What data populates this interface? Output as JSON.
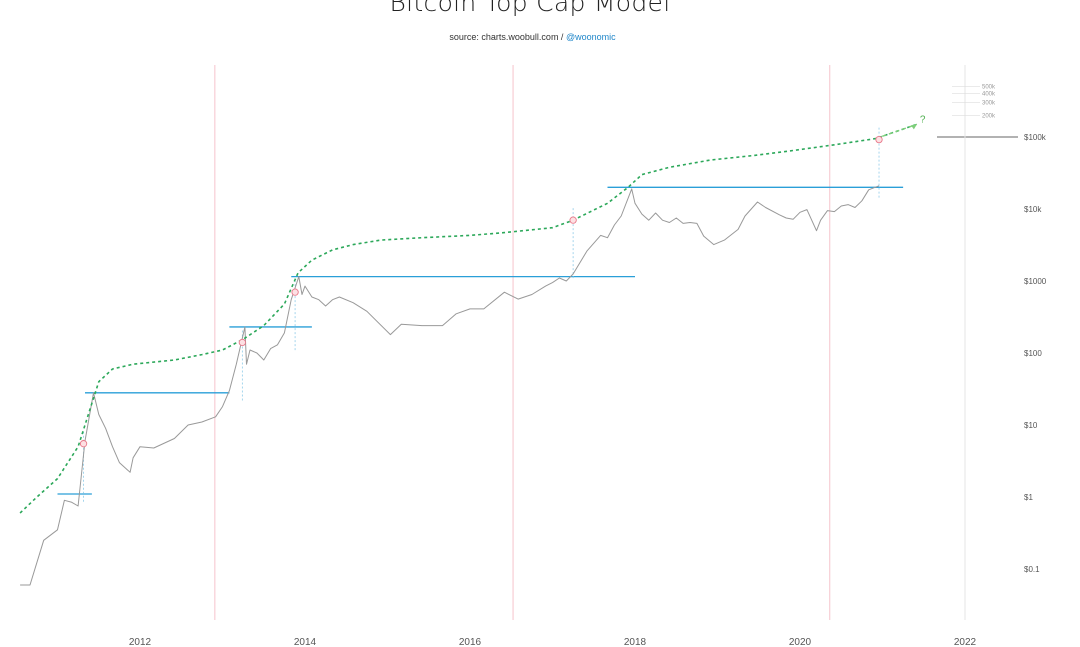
{
  "title": "Bitcoin Top Cap Model",
  "source": {
    "prefix": "source: charts.woobull.com / ",
    "handle": "@woonomic"
  },
  "chart_data": {
    "type": "line",
    "title": "Bitcoin Top Cap Model",
    "yscale": "log",
    "ylim": [
      0.05,
      600000
    ],
    "xlim": [
      "2010-07",
      "2022-06"
    ],
    "y_ticks": [
      {
        "value": 0.1,
        "label": "$0.1"
      },
      {
        "value": 1,
        "label": "$1"
      },
      {
        "value": 10,
        "label": "$10"
      },
      {
        "value": 100,
        "label": "$100"
      },
      {
        "value": 1000,
        "label": "$1000"
      },
      {
        "value": 10000,
        "label": "$10k"
      },
      {
        "value": 100000,
        "label": "$100k"
      }
    ],
    "x_ticks": [
      "2012",
      "2014",
      "2016",
      "2018",
      "2020",
      "2022"
    ],
    "upper_scale_labels": [
      {
        "value": 500000,
        "label": "500k"
      },
      {
        "value": 400000,
        "label": "400k"
      },
      {
        "value": 300000,
        "label": "300k"
      },
      {
        "value": 200000,
        "label": "200k"
      }
    ],
    "projection_label": "?",
    "halvings": [
      "2012-11-28",
      "2016-07-09",
      "2020-05-11"
    ],
    "series": [
      {
        "color": "#999999",
        "x": [
          "2010-07-18",
          "2010-09",
          "2010-11",
          "2011-01",
          "2011-02",
          "2011-03",
          "2011-04",
          "2011-05",
          "2011-06-08",
          "2011-07",
          "2011-08",
          "2011-09",
          "2011-10",
          "2011-11-18",
          "2011-12",
          "2012-01",
          "2012-03",
          "2012-06",
          "2012-08",
          "2012-10",
          "2012-12",
          "2013-01",
          "2013-02",
          "2013-03",
          "2013-04-09",
          "2013-04-16",
          "2013-05",
          "2013-06",
          "2013-07",
          "2013-08",
          "2013-09",
          "2013-10",
          "2013-11",
          "2013-12-04",
          "2013-12-18",
          "2014-01",
          "2014-02",
          "2014-03",
          "2014-04",
          "2014-05",
          "2014-06",
          "2014-08",
          "2014-10",
          "2015-01-14",
          "2015-03",
          "2015-06",
          "2015-09",
          "2015-11",
          "2016-01",
          "2016-03",
          "2016-06",
          "2016-08",
          "2016-10",
          "2016-12",
          "2017-01",
          "2017-02",
          "2017-03",
          "2017-04",
          "2017-06",
          "2017-08",
          "2017-09",
          "2017-10",
          "2017-11",
          "2017-12-17",
          "2018-01",
          "2018-02",
          "2018-03",
          "2018-04",
          "2018-05",
          "2018-06",
          "2018-07",
          "2018-08",
          "2018-09",
          "2018-10",
          "2018-11",
          "2018-12-15",
          "2019-02",
          "2019-04",
          "2019-05",
          "2019-06-26",
          "2019-08",
          "2019-10",
          "2019-11",
          "2019-12",
          "2020-01",
          "2020-02",
          "2020-03-13",
          "2020-04",
          "2020-05",
          "2020-06",
          "2020-07",
          "2020-08",
          "2020-09",
          "2020-10",
          "2020-11",
          "2020-12-16"
        ],
        "values": [
          0.06,
          0.06,
          0.25,
          0.35,
          0.9,
          0.85,
          0.75,
          6,
          28,
          14,
          9,
          5,
          3,
          2.2,
          3.5,
          5,
          4.8,
          6.5,
          10,
          11,
          13,
          18,
          30,
          70,
          230,
          70,
          110,
          100,
          80,
          115,
          130,
          190,
          550,
          1150,
          650,
          850,
          600,
          550,
          450,
          550,
          600,
          500,
          380,
          180,
          250,
          240,
          240,
          350,
          410,
          410,
          700,
          560,
          650,
          850,
          950,
          1100,
          1000,
          1250,
          2600,
          4300,
          4000,
          6000,
          8000,
          19000,
          12000,
          8500,
          7000,
          8800,
          7000,
          6500,
          7500,
          6300,
          6500,
          6300,
          4200,
          3200,
          3700,
          5200,
          8000,
          12500,
          10500,
          8300,
          7500,
          7200,
          9000,
          9800,
          5000,
          7000,
          9500,
          9200,
          11000,
          11500,
          10500,
          13000,
          18500,
          21000
        ]
      },
      {
        "color": "#2ca85a",
        "style": "dotted",
        "x": [
          "2010-07-18",
          "2010-10",
          "2011-01",
          "2011-04",
          "2011-06",
          "2011-07",
          "2011-09",
          "2011-12",
          "2012-06",
          "2012-10",
          "2013-01",
          "2013-04",
          "2013-07",
          "2013-10",
          "2013-12",
          "2014-02",
          "2014-05",
          "2014-08",
          "2014-12",
          "2015-06",
          "2016-01",
          "2016-06",
          "2017-01",
          "2017-04",
          "2017-09",
          "2017-12",
          "2018-02",
          "2018-06",
          "2018-12",
          "2019-06",
          "2019-12",
          "2020-06",
          "2020-12",
          "2021-06"
        ],
        "values": [
          0.6,
          1.0,
          1.8,
          5,
          20,
          40,
          60,
          70,
          80,
          95,
          110,
          155,
          240,
          480,
          1300,
          1950,
          2700,
          3200,
          3700,
          4000,
          4300,
          4700,
          5500,
          7000,
          12000,
          20000,
          30000,
          38000,
          48000,
          55000,
          65000,
          78000,
          95000,
          150000
        ]
      }
    ],
    "horizontal_lines": [
      {
        "y": 1.1,
        "from": "2011-01",
        "to": "2011-06"
      },
      {
        "y": 28,
        "from": "2011-05",
        "to": "2013-02"
      },
      {
        "y": 230,
        "from": "2013-02",
        "to": "2014-02"
      },
      {
        "y": 1150,
        "from": "2013-11",
        "to": "2018-01"
      },
      {
        "y": 20000,
        "from": "2017-09",
        "to": "2021-04"
      }
    ],
    "top_markers": [
      {
        "x": "2011-04-25",
        "y": 5.5
      },
      {
        "x": "2013-03-28",
        "y": 140
      },
      {
        "x": "2013-11-18",
        "y": 700
      },
      {
        "x": "2017-04-01",
        "y": 7000
      },
      {
        "x": "2020-12-16",
        "y": 92000
      }
    ]
  }
}
